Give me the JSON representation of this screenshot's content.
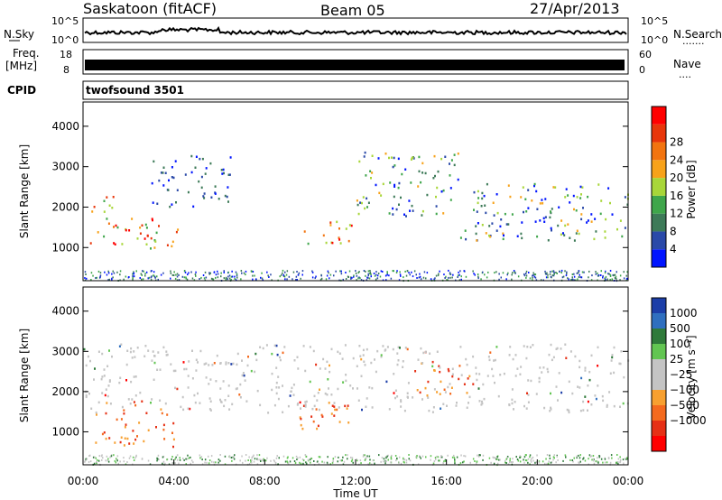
{
  "header": {
    "title": "Saskatoon (fitACF)",
    "beam": "Beam 05",
    "date": "27/Apr/2013"
  },
  "noise_panel": {
    "left_label": "N.Sky",
    "right_label": "N.Search",
    "right_dots": "·······",
    "left_ticks": [
      "10^5",
      "10^0"
    ],
    "right_ticks": [
      "10^5",
      "10^0"
    ]
  },
  "freq_panel": {
    "left_label": "Freq.",
    "unit": "[MHz]",
    "left_ticks": [
      "18",
      "8"
    ],
    "right_label": "Nave",
    "right_dots": "····",
    "right_ticks": [
      "60",
      "0"
    ]
  },
  "cpid_panel": {
    "label": "CPID",
    "text": "twofsound 3501"
  },
  "colors": {
    "power_scale": [
      "#0014ff",
      "#2a49a8",
      "#3d7a58",
      "#3fa64b",
      "#a8d639",
      "#f7a21a",
      "#f2740f",
      "#e8360a",
      "#ff0000"
    ],
    "velocity_scale": [
      "#1c3ea8",
      "#2f6fbf",
      "#2f7a3a",
      "#62c552",
      "#c4c4c4",
      "#c4c4c4",
      "#f7a030",
      "#f46a1e",
      "#e63015",
      "#ff0000"
    ]
  },
  "chart_data": [
    {
      "type": "heatmap",
      "name": "power",
      "xlabel": "",
      "ylabel": "Slant Range [km]",
      "x_ticks": [],
      "y_ticks": [
        "1000",
        "2000",
        "3000",
        "4000"
      ],
      "y_tick_values": [
        1000,
        2000,
        3000,
        4000
      ],
      "ylim": [
        180,
        4600
      ],
      "xlim": [
        0,
        24
      ],
      "colorbar": {
        "label": "Power [dB]",
        "ticks": [
          "4",
          "8",
          "12",
          "16",
          "20",
          "24",
          "28"
        ],
        "range": [
          0,
          30
        ]
      },
      "echo_regions": [
        {
          "t0": 0.3,
          "t1": 1.5,
          "r0": 1000,
          "r1": 2300,
          "level": "high"
        },
        {
          "t0": 1.5,
          "t1": 4.2,
          "r0": 1000,
          "r1": 1800,
          "level": "high"
        },
        {
          "t0": 3.0,
          "t1": 6.5,
          "r0": 2000,
          "r1": 3300,
          "level": "low"
        },
        {
          "t0": 9.5,
          "t1": 11.8,
          "r0": 1100,
          "r1": 1700,
          "level": "high"
        },
        {
          "t0": 12.0,
          "t1": 16.5,
          "r0": 1800,
          "r1": 3400,
          "level": "mid"
        },
        {
          "t0": 16.5,
          "t1": 24.0,
          "r0": 1200,
          "r1": 2600,
          "level": "mid"
        }
      ]
    },
    {
      "type": "heatmap",
      "name": "velocity",
      "xlabel": "Time UT",
      "ylabel": "Slant Range [km]",
      "x_ticks": [
        "00:00",
        "04:00",
        "08:00",
        "12:00",
        "16:00",
        "20:00",
        "00:00"
      ],
      "x_tick_values": [
        0,
        4,
        8,
        12,
        16,
        20,
        24
      ],
      "y_ticks": [
        "1000",
        "2000",
        "3000",
        "4000"
      ],
      "y_tick_values": [
        1000,
        2000,
        3000,
        4000
      ],
      "ylim": [
        180,
        4600
      ],
      "xlim": [
        0,
        24
      ],
      "colorbar": {
        "label": "Velocity [m s⁻¹]",
        "ticks": [
          "1000",
          "500",
          "100",
          "25",
          "−25",
          "−100",
          "−500",
          "−1000"
        ]
      },
      "echo_regions": [
        {
          "t0": 0.3,
          "t1": 4.0,
          "r0": 600,
          "r1": 1800,
          "level": "away"
        },
        {
          "t0": 9.5,
          "t1": 11.8,
          "r0": 1100,
          "r1": 1700,
          "level": "away"
        },
        {
          "t0": 14.5,
          "t1": 17.0,
          "r0": 1900,
          "r1": 2800,
          "level": "away"
        },
        {
          "t0": 0.0,
          "t1": 24.0,
          "r0": 1500,
          "r1": 3200,
          "level": "ground"
        }
      ]
    }
  ]
}
